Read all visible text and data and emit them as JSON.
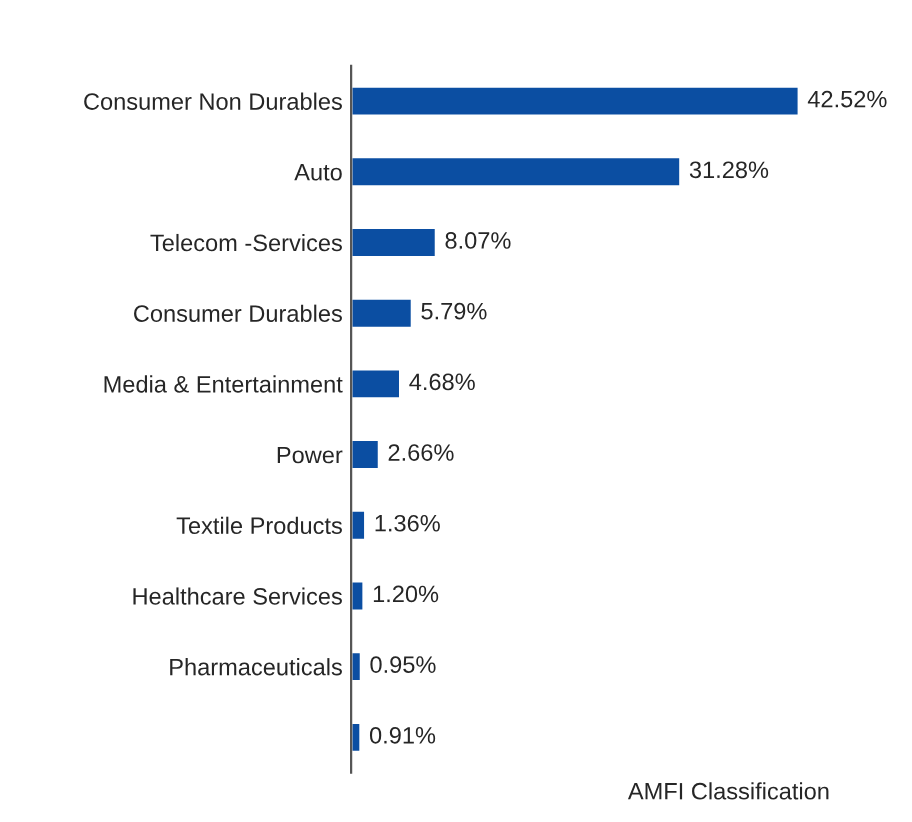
{
  "chart_data": {
    "type": "bar",
    "orientation": "horizontal",
    "categories": [
      "Consumer Non Durables",
      "Auto",
      "Telecom -Services",
      "Consumer Durables",
      "Media & Entertainment",
      "Power",
      "Textile Products",
      "Healthcare Services",
      "Pharmaceuticals",
      null
    ],
    "values": [
      42.52,
      31.28,
      8.07,
      5.79,
      4.68,
      2.66,
      1.36,
      1.2,
      0.95,
      0.91
    ],
    "color": "#0b4ea2",
    "value_labels": [
      "42.52%",
      "31.28%",
      "8.07%",
      "5.79%",
      "4.68%",
      "2.66%",
      "1.36%",
      "1.20%",
      "0.95%",
      "0.91%"
    ],
    "annotations": [
      "AMFI Classification"
    ],
    "grid": false,
    "legend": false
  }
}
